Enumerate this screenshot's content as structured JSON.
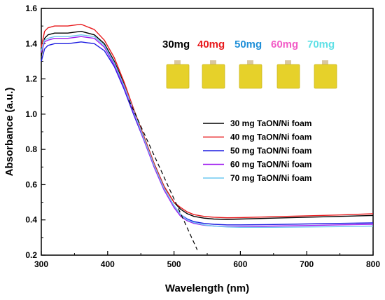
{
  "chart_data": {
    "type": "line",
    "title": "",
    "xlabel": "Wavelength (nm)",
    "ylabel": "Absorbance (a.u.)",
    "xlim": [
      300,
      800
    ],
    "ylim": [
      0.2,
      1.6
    ],
    "xticks": [
      "300",
      "400",
      "500",
      "600",
      "700",
      "800"
    ],
    "yticks": [
      "0.2",
      "0.4",
      "0.6",
      "0.8",
      "1.0",
      "1.2",
      "1.4",
      "1.6"
    ],
    "grid": false,
    "legend_position": "right",
    "series": [
      {
        "name": "30 mg TaON/Ni foam",
        "color": "#000000",
        "x": [
          300,
          305,
          310,
          320,
          340,
          360,
          380,
          395,
          410,
          425,
          440,
          455,
          470,
          485,
          500,
          510,
          520,
          530,
          545,
          560,
          580,
          600,
          650,
          700,
          750,
          800
        ],
        "y": [
          1.33,
          1.43,
          1.45,
          1.46,
          1.46,
          1.47,
          1.45,
          1.4,
          1.3,
          1.17,
          1.02,
          0.87,
          0.72,
          0.59,
          0.5,
          0.46,
          0.435,
          0.42,
          0.41,
          0.405,
          0.403,
          0.405,
          0.41,
          0.415,
          0.42,
          0.425
        ]
      },
      {
        "name": "40 mg TaON/Ni foam",
        "color": "#e8191c",
        "x": [
          300,
          305,
          310,
          320,
          340,
          360,
          380,
          395,
          410,
          425,
          440,
          455,
          470,
          485,
          500,
          510,
          520,
          530,
          545,
          560,
          580,
          600,
          650,
          700,
          750,
          800
        ],
        "y": [
          1.38,
          1.47,
          1.49,
          1.5,
          1.5,
          1.51,
          1.48,
          1.42,
          1.32,
          1.18,
          1.02,
          0.87,
          0.72,
          0.59,
          0.5,
          0.47,
          0.445,
          0.43,
          0.42,
          0.415,
          0.412,
          0.413,
          0.418,
          0.423,
          0.428,
          0.435
        ]
      },
      {
        "name": "50 mg TaON/Ni foam",
        "color": "#1c1ce0",
        "x": [
          300,
          305,
          310,
          320,
          340,
          360,
          380,
          395,
          410,
          425,
          440,
          455,
          470,
          485,
          500,
          510,
          520,
          530,
          545,
          560,
          580,
          600,
          650,
          700,
          750,
          800
        ],
        "y": [
          1.3,
          1.37,
          1.39,
          1.4,
          1.4,
          1.41,
          1.4,
          1.36,
          1.27,
          1.14,
          0.99,
          0.85,
          0.7,
          0.57,
          0.48,
          0.43,
          0.405,
          0.39,
          0.38,
          0.375,
          0.372,
          0.372,
          0.374,
          0.377,
          0.38,
          0.383
        ]
      },
      {
        "name": "60 mg TaON/Ni foam",
        "color": "#a020f0",
        "x": [
          300,
          305,
          310,
          320,
          340,
          360,
          380,
          395,
          410,
          425,
          440,
          455,
          470,
          485,
          500,
          510,
          520,
          530,
          545,
          560,
          580,
          600,
          650,
          700,
          750,
          800
        ],
        "y": [
          1.35,
          1.41,
          1.42,
          1.43,
          1.43,
          1.44,
          1.43,
          1.38,
          1.28,
          1.15,
          1.0,
          0.85,
          0.7,
          0.57,
          0.47,
          0.42,
          0.395,
          0.38,
          0.37,
          0.365,
          0.362,
          0.362,
          0.365,
          0.368,
          0.372,
          0.375
        ]
      },
      {
        "name": "70 mg TaON/Ni foam",
        "color": "#6ec8f0",
        "x": [
          300,
          305,
          310,
          320,
          340,
          360,
          380,
          395,
          410,
          425,
          440,
          455,
          470,
          485,
          500,
          510,
          520,
          530,
          545,
          560,
          580,
          600,
          650,
          700,
          750,
          800
        ],
        "y": [
          1.36,
          1.42,
          1.43,
          1.44,
          1.44,
          1.45,
          1.44,
          1.39,
          1.29,
          1.16,
          1.01,
          0.86,
          0.71,
          0.58,
          0.48,
          0.43,
          0.4,
          0.385,
          0.372,
          0.365,
          0.36,
          0.358,
          0.358,
          0.36,
          0.362,
          0.365
        ]
      }
    ],
    "tangent_line": {
      "x": [
        432,
        535
      ],
      "y": [
        1.08,
        0.23
      ],
      "style": "dashed",
      "color": "#000000"
    },
    "sample_labels": [
      {
        "text": "30mg",
        "color": "#000000"
      },
      {
        "text": "40mg",
        "color": "#e8191c"
      },
      {
        "text": "50mg",
        "color": "#1f8fd8"
      },
      {
        "text": "60mg",
        "color": "#f25cc6"
      },
      {
        "text": "70mg",
        "color": "#5fe0e6"
      }
    ],
    "sample_photo_color": "#e6d12a"
  }
}
